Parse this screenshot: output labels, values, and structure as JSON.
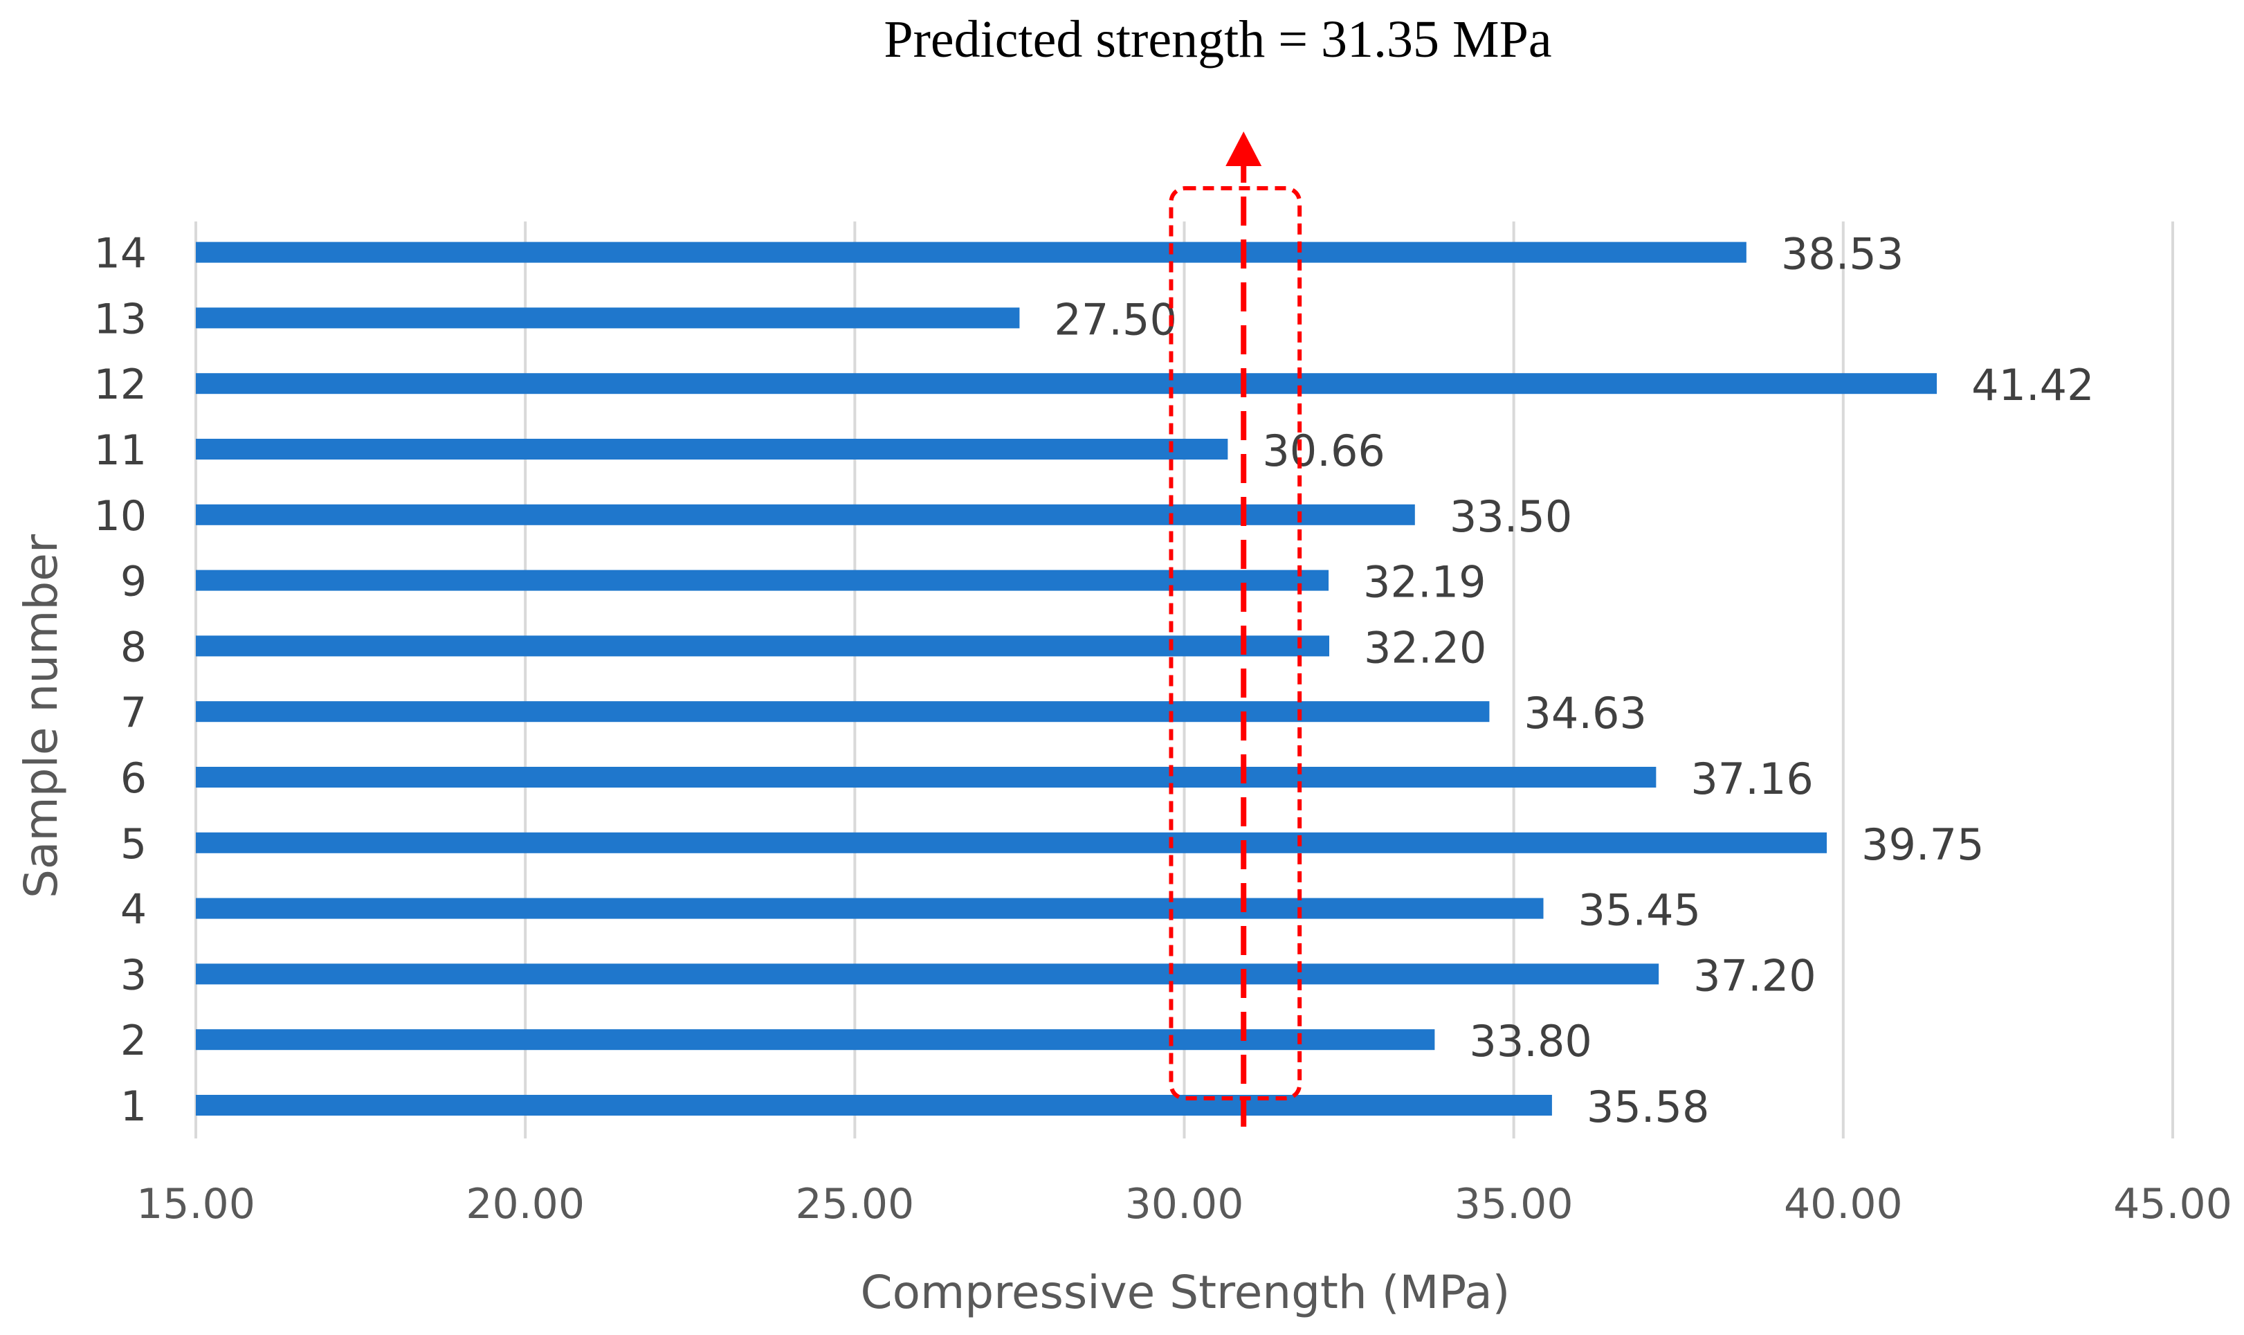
{
  "chart_data": {
    "type": "bar",
    "orientation": "horizontal",
    "title": "Predicted strength = 31.35 MPa",
    "xlabel": "Compressive Strength (MPa)",
    "ylabel": "Sample number",
    "xlim": [
      15,
      45
    ],
    "x_ticks": [
      "15.00",
      "20.00",
      "25.00",
      "30.00",
      "35.00",
      "40.00",
      "45.00"
    ],
    "x_tick_values": [
      15,
      20,
      25,
      30,
      35,
      40,
      45
    ],
    "categories": [
      "1",
      "2",
      "3",
      "4",
      "5",
      "6",
      "7",
      "8",
      "9",
      "10",
      "11",
      "12",
      "13",
      "14"
    ],
    "values": [
      35.58,
      33.8,
      37.2,
      35.45,
      39.75,
      37.16,
      34.63,
      32.2,
      32.19,
      33.5,
      30.66,
      41.42,
      27.5,
      38.53
    ],
    "value_labels": [
      "35.58",
      "33.80",
      "37.20",
      "35.45",
      "39.75",
      "37.16",
      "34.63",
      "32.20",
      "32.19",
      "33.50",
      "30.66",
      "41.42",
      "27.50",
      "38.53"
    ],
    "grid": "vertical",
    "annotation": {
      "marker": "dashed arrow with dashed highlight box",
      "value": 30.9,
      "box_range": [
        29.8,
        31.75
      ]
    },
    "colors": {
      "bar": "#1f77cc",
      "annotation": "#ff0000",
      "grid": "#d9d9d9"
    }
  }
}
